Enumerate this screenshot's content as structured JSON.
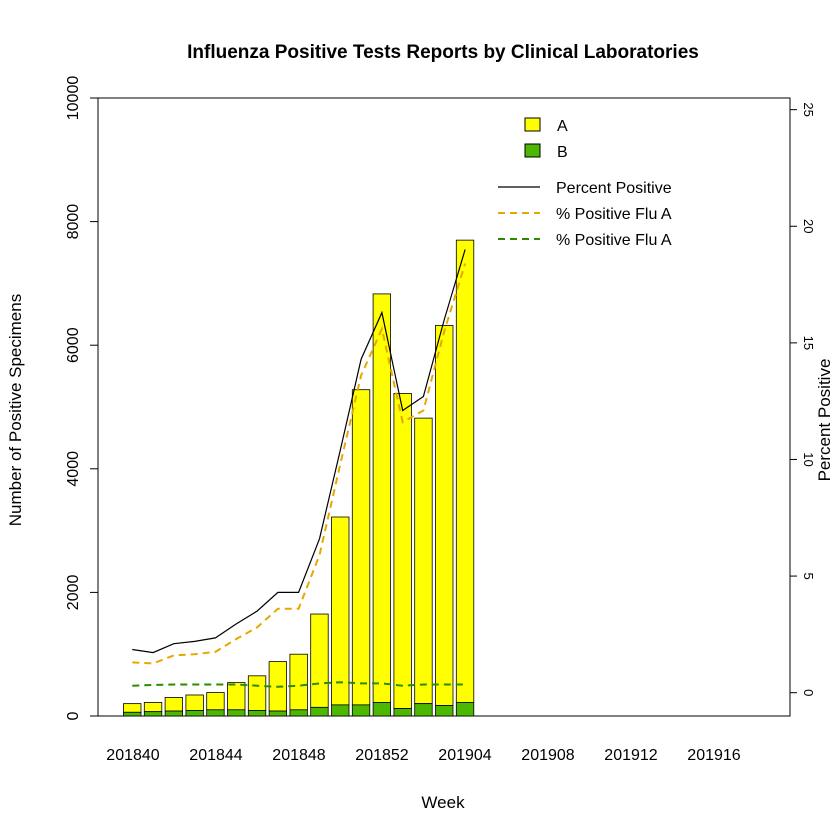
{
  "chart_data": {
    "type": "bar",
    "title": "Influenza Positive Tests Reports by Clinical Laboratories",
    "xlabel": "Week",
    "ylabel": "Number of Positive Specimens",
    "y2label": "Percent Positive",
    "ylim": [
      0,
      10000
    ],
    "y2lim": [
      -1,
      25.5
    ],
    "yticks": [
      "0",
      "2000",
      "4000",
      "6000",
      "8000",
      "10000"
    ],
    "y2ticks": [
      "0",
      "5",
      "10",
      "15",
      "20",
      "25"
    ],
    "xtick_labels": [
      "201840",
      "201844",
      "201848",
      "201852",
      "201904",
      "201908",
      "201912",
      "201916"
    ],
    "bar_series": [
      {
        "name": "A",
        "color": "#ffff00"
      },
      {
        "name": "B",
        "color": "#4db800"
      }
    ],
    "weeks": [
      "201840",
      "201841",
      "201842",
      "201843",
      "201844",
      "201845",
      "201846",
      "201847",
      "201848",
      "201849",
      "201850",
      "201851",
      "201852",
      "201901",
      "201902",
      "201903",
      "201904"
    ],
    "total_values": [
      200,
      220,
      300,
      340,
      380,
      540,
      650,
      880,
      1000,
      1650,
      3220,
      5280,
      6830,
      5220,
      4820,
      6320,
      7700
    ],
    "b_values": [
      60,
      70,
      80,
      90,
      100,
      100,
      90,
      80,
      100,
      140,
      180,
      180,
      220,
      120,
      200,
      170,
      220
    ],
    "line_series": [
      {
        "name": "Percent Positive",
        "color": "#000000",
        "dash": "solid",
        "values": [
          1.85,
          1.72,
          2.1,
          2.2,
          2.35,
          2.95,
          3.5,
          4.3,
          4.3,
          6.6,
          10.4,
          14.3,
          16.3,
          12.1,
          12.7,
          16.0,
          19.0
        ]
      },
      {
        "name": "% Positive Flu A",
        "color": "#e6a800",
        "dash": "dashed",
        "values": [
          1.3,
          1.25,
          1.6,
          1.65,
          1.75,
          2.3,
          2.8,
          3.6,
          3.6,
          5.9,
          9.8,
          13.6,
          15.6,
          11.6,
          12.1,
          15.5,
          18.4
        ]
      },
      {
        "name": "% Positive Flu A",
        "color": "#2e8b00",
        "dash": "dashed",
        "values": [
          0.3,
          0.33,
          0.35,
          0.35,
          0.35,
          0.35,
          0.3,
          0.25,
          0.3,
          0.4,
          0.45,
          0.4,
          0.4,
          0.3,
          0.35,
          0.35,
          0.35
        ]
      }
    ],
    "legend_position": "top-right",
    "grid": false
  }
}
